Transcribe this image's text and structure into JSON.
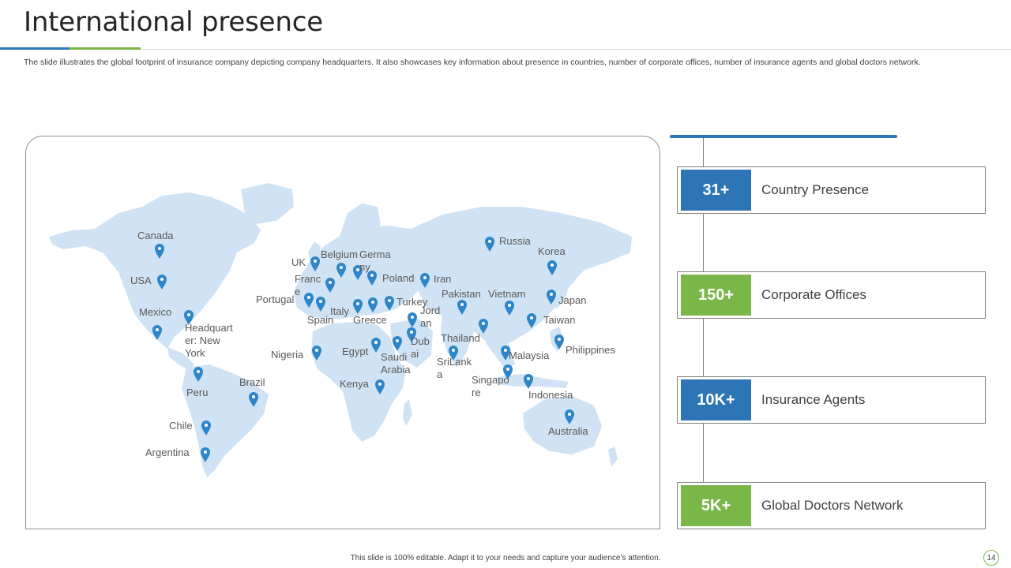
{
  "slide": {
    "title": "International presence",
    "description": "The slide illustrates the global footprint of insurance company depicting company headquarters. It also showcases key information about presence in countries, number of corporate offices, number of insurance agents and global doctors network.",
    "footer_note": "This slide is 100% editable. Adapt it to your needs and capture your audience’s attention.",
    "page_number": "14"
  },
  "colors": {
    "accent_blue": "#2e75b6",
    "accent_green": "#7ab648",
    "pin_blue": "#2e86c8",
    "map_fill": "#cfe3f4"
  },
  "map": {
    "pin_icon": "map-pin-icon",
    "locations": [
      {
        "id": "canada",
        "label": "Canada"
      },
      {
        "id": "usa",
        "label": "USA"
      },
      {
        "id": "mexico",
        "label": "Mexico"
      },
      {
        "id": "headquarter",
        "label": "Headquart\ner: New\nYork"
      },
      {
        "id": "peru",
        "label": "Peru"
      },
      {
        "id": "brazil",
        "label": "Brazil"
      },
      {
        "id": "chile",
        "label": "Chile"
      },
      {
        "id": "argentina",
        "label": "Argentina"
      },
      {
        "id": "uk",
        "label": "UK"
      },
      {
        "id": "belgium",
        "label": "Belgium"
      },
      {
        "id": "germany",
        "label": "Germa\nny"
      },
      {
        "id": "france",
        "label": "Franc\ne"
      },
      {
        "id": "portugal",
        "label": "Portugal"
      },
      {
        "id": "spain",
        "label": "Spain"
      },
      {
        "id": "italy",
        "label": "Italy"
      },
      {
        "id": "greece",
        "label": "Greece"
      },
      {
        "id": "poland",
        "label": "Poland"
      },
      {
        "id": "turkey",
        "label": "Turkey"
      },
      {
        "id": "iran",
        "label": "Iran"
      },
      {
        "id": "jordan",
        "label": "Jord\nan"
      },
      {
        "id": "dubai",
        "label": "Dub\nai"
      },
      {
        "id": "saudi",
        "label": "Saudi\nArabia"
      },
      {
        "id": "egypt",
        "label": "Egypt"
      },
      {
        "id": "nigeria",
        "label": "Nigeria"
      },
      {
        "id": "kenya",
        "label": "Kenya"
      },
      {
        "id": "russia",
        "label": "Russia"
      },
      {
        "id": "pakistan",
        "label": "Pakistan"
      },
      {
        "id": "srilanka",
        "label": "SriLank\na"
      },
      {
        "id": "thailand",
        "label": "Thailand"
      },
      {
        "id": "vietnam",
        "label": "Vietnam"
      },
      {
        "id": "malaysia",
        "label": "Malaysia"
      },
      {
        "id": "singapore",
        "label": "Singapo\nre"
      },
      {
        "id": "indonesia",
        "label": "Indonesia"
      },
      {
        "id": "korea",
        "label": "Korea"
      },
      {
        "id": "japan",
        "label": "Japan"
      },
      {
        "id": "taiwan",
        "label": "Taiwan"
      },
      {
        "id": "philippines",
        "label": "Philippines"
      },
      {
        "id": "australia",
        "label": "Australia"
      }
    ]
  },
  "stats": [
    {
      "value": "31+",
      "label": "Country Presence",
      "color": "#2e75b6"
    },
    {
      "value": "150+",
      "label": "Corporate Offices",
      "color": "#7ab648"
    },
    {
      "value": "10K+",
      "label": "Insurance Agents",
      "color": "#2e75b6"
    },
    {
      "value": "5K+",
      "label": "Global Doctors Network",
      "color": "#7ab648"
    }
  ]
}
